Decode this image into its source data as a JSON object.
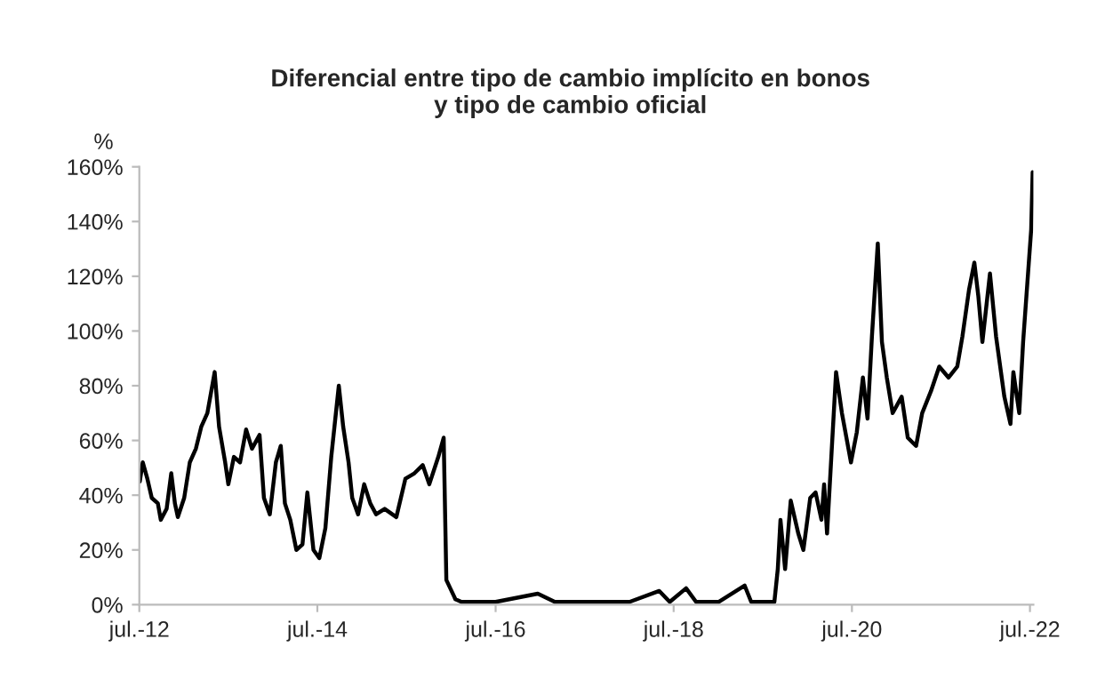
{
  "chart_data": {
    "type": "line",
    "title": "Diferencial entre tipo de cambio implícito en bonos\ny tipo de cambio oficial",
    "ylabel": "%",
    "xlim": [
      "2012-07-01",
      "2022-07-15"
    ],
    "xticks": [
      {
        "value": "2012-07-01",
        "label": "jul.-12"
      },
      {
        "value": "2014-07-01",
        "label": "jul.-14"
      },
      {
        "value": "2016-07-01",
        "label": "jul.-16"
      },
      {
        "value": "2018-07-01",
        "label": "jul.-18"
      },
      {
        "value": "2020-07-01",
        "label": "jul.-20"
      },
      {
        "value": "2022-07-01",
        "label": "jul.-22"
      }
    ],
    "ylim": [
      0,
      160
    ],
    "yticks": [
      {
        "value": 0,
        "label": "0%"
      },
      {
        "value": 20,
        "label": "20%"
      },
      {
        "value": 40,
        "label": "40%"
      },
      {
        "value": 60,
        "label": "60%"
      },
      {
        "value": 80,
        "label": "80%"
      },
      {
        "value": 100,
        "label": "100%"
      },
      {
        "value": 120,
        "label": "120%"
      },
      {
        "value": 140,
        "label": "140%"
      },
      {
        "value": 160,
        "label": "160%"
      }
    ],
    "grid": false,
    "legend": false,
    "marker": "none",
    "line_style": "solid",
    "x": [
      "2012-07-03",
      "2012-07-15",
      "2012-08-03",
      "2012-08-21",
      "2012-09-15",
      "2012-09-27",
      "2012-10-21",
      "2012-11-09",
      "2012-11-24",
      "2012-12-06",
      "2013-01-01",
      "2013-01-24",
      "2013-02-18",
      "2013-03-12",
      "2013-04-06",
      "2013-05-06",
      "2013-05-24",
      "2013-06-18",
      "2013-07-01",
      "2013-07-24",
      "2013-08-18",
      "2013-09-12",
      "2013-10-06",
      "2013-11-06",
      "2013-11-24",
      "2013-12-18",
      "2014-01-12",
      "2014-02-01",
      "2014-02-18",
      "2014-03-12",
      "2014-04-06",
      "2014-05-01",
      "2014-05-21",
      "2014-06-15",
      "2014-07-09",
      "2014-08-03",
      "2014-08-27",
      "2014-09-27",
      "2014-10-15",
      "2014-11-06",
      "2014-11-21",
      "2014-12-15",
      "2015-01-09",
      "2015-02-03",
      "2015-02-27",
      "2015-04-03",
      "2015-05-21",
      "2015-06-27",
      "2015-08-03",
      "2015-09-06",
      "2015-10-03",
      "2015-11-09",
      "2015-12-01",
      "2015-12-12",
      "2016-01-18",
      "2016-02-12",
      "2016-03-15",
      "2016-07-01",
      "2016-12-21",
      "2017-03-01",
      "2017-09-01",
      "2018-01-01",
      "2018-05-03",
      "2018-06-15",
      "2018-08-21",
      "2018-10-01",
      "2019-01-01",
      "2019-04-18",
      "2019-05-15",
      "2019-08-18",
      "2019-09-01",
      "2019-09-12",
      "2019-10-01",
      "2019-10-24",
      "2019-11-24",
      "2019-12-15",
      "2020-01-12",
      "2020-02-03",
      "2020-02-27",
      "2020-03-09",
      "2020-03-21",
      "2020-04-27",
      "2020-05-21",
      "2020-06-27",
      "2020-07-21",
      "2020-08-15",
      "2020-09-03",
      "2020-09-21",
      "2020-10-15",
      "2020-11-01",
      "2020-11-21",
      "2020-12-15",
      "2021-01-21",
      "2021-02-15",
      "2021-03-21",
      "2021-04-15",
      "2021-05-21",
      "2021-06-24",
      "2021-08-01",
      "2021-09-06",
      "2021-09-27",
      "2021-10-24",
      "2021-11-15",
      "2021-12-01",
      "2021-12-18",
      "2022-01-18",
      "2022-02-12",
      "2022-03-18",
      "2022-04-12",
      "2022-04-24",
      "2022-05-18",
      "2022-06-03",
      "2022-07-06",
      "2022-07-12"
    ],
    "series": [
      {
        "color": "#000000",
        "values": [
          45,
          52,
          46,
          39,
          37,
          31,
          35,
          48,
          37,
          32,
          39,
          52,
          57,
          65,
          70,
          85,
          65,
          52,
          44,
          54,
          52,
          64,
          57,
          62,
          39,
          33,
          52,
          58,
          37,
          31,
          20,
          22,
          41,
          20,
          17,
          28,
          54,
          80,
          65,
          52,
          39,
          33,
          44,
          37,
          33,
          35,
          32,
          46,
          48,
          51,
          44,
          54,
          61,
          9,
          2,
          1,
          1,
          1,
          4,
          1,
          1,
          1,
          5,
          1,
          6,
          1,
          1,
          7,
          1,
          1,
          13,
          31,
          13,
          38,
          26,
          20,
          39,
          41,
          31,
          44,
          26,
          85,
          70,
          52,
          63,
          83,
          68,
          98,
          132,
          96,
          83,
          70,
          76,
          61,
          58,
          70,
          78,
          87,
          83,
          87,
          98,
          115,
          125,
          113,
          96,
          121,
          98,
          76,
          66,
          85,
          70,
          96,
          137,
          158
        ]
      }
    ]
  }
}
